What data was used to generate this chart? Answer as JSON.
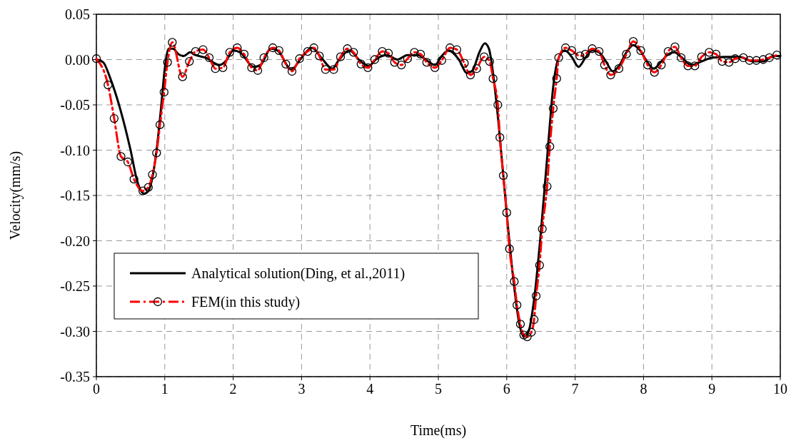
{
  "chart_data": {
    "type": "line",
    "xlabel": "Time(ms)",
    "ylabel": "Velocity(mm/s)",
    "xlim": [
      0,
      10
    ],
    "xticks": [
      0,
      1,
      2,
      3,
      4,
      5,
      6,
      7,
      8,
      9,
      10
    ],
    "ylim": [
      -0.35,
      0.05
    ],
    "yticks": [
      {
        "value": -0.35,
        "label": "-0.35"
      },
      {
        "value": -0.3,
        "label": "-0.30"
      },
      {
        "value": -0.25,
        "label": "-0.25"
      },
      {
        "value": -0.2,
        "label": "-0.20"
      },
      {
        "value": -0.15,
        "label": "-0.15"
      },
      {
        "value": -0.1,
        "label": "-0.10"
      },
      {
        "value": -0.05,
        "label": "-0.05"
      },
      {
        "value": 0,
        "label": "0.00"
      },
      {
        "value": 0.05,
        "label": "0.05"
      }
    ],
    "grid": true,
    "legend": "bottom left",
    "series": [
      {
        "name": "Analytical solution(Ding, et al.,2011)",
        "color": "#000000",
        "marker": "none",
        "line_style": "solid",
        "x": [
          0,
          0.1,
          0.2,
          0.35,
          0.5,
          0.6,
          0.7,
          0.76,
          0.82,
          0.88,
          0.95,
          1.0,
          1.06,
          1.12,
          1.2,
          1.28,
          1.37,
          1.45,
          1.6,
          1.8,
          1.9,
          2.0,
          2.1,
          2.3,
          2.4,
          2.55,
          2.65,
          2.85,
          3.0,
          3.15,
          3.3,
          3.45,
          3.55,
          3.7,
          3.85,
          3.98,
          4.1,
          4.25,
          4.4,
          4.55,
          4.7,
          4.85,
          4.95,
          5.05,
          5.15,
          5.3,
          5.42,
          5.5,
          5.6,
          5.68,
          5.74,
          5.8,
          5.88,
          6.0,
          6.1,
          6.18,
          6.25,
          6.32,
          6.4,
          6.5,
          6.6,
          6.68,
          6.75,
          6.85,
          6.95,
          7.05,
          7.15,
          7.25,
          7.35,
          7.45,
          7.55,
          7.65,
          7.75,
          7.85,
          7.95,
          8.05,
          8.15,
          8.25,
          8.35,
          8.45,
          8.55,
          8.7,
          8.85,
          9.0,
          9.2,
          9.4,
          9.6,
          9.75,
          9.9,
          10
        ],
        "values": [
          0,
          -0.003,
          -0.02,
          -0.055,
          -0.1,
          -0.135,
          -0.148,
          -0.145,
          -0.13,
          -0.1,
          -0.05,
          -0.01,
          0.012,
          0.012,
          0.006,
          0.004,
          0.008,
          0.005,
          0.002,
          -0.006,
          -0.001,
          0.01,
          0.008,
          -0.008,
          -0.006,
          0.012,
          0.01,
          -0.011,
          0.002,
          0.013,
          0.001,
          -0.01,
          0,
          0.01,
          -0.001,
          -0.007,
          0.001,
          0.005,
          0,
          0.005,
          0.005,
          -0.002,
          -0.006,
          0.004,
          0.01,
          0,
          -0.015,
          -0.012,
          0.008,
          0.018,
          0.012,
          -0.015,
          -0.07,
          -0.17,
          -0.245,
          -0.29,
          -0.306,
          -0.3,
          -0.265,
          -0.19,
          -0.1,
          -0.03,
          0,
          0.01,
          0.003,
          -0.008,
          0.002,
          0.01,
          0.008,
          -0.002,
          -0.013,
          -0.006,
          0.008,
          0.016,
          0.01,
          -0.002,
          -0.01,
          -0.003,
          0.005,
          0.008,
          0.003,
          -0.006,
          -0.002,
          0.002,
          0.003,
          0.003,
          -0.002,
          -0.002,
          0.004,
          0.004
        ]
      },
      {
        "name": "FEM(in this study)",
        "color": "#ff0000",
        "marker": "circle",
        "line_style": "dashed",
        "x": [
          0,
          0.17,
          0.26,
          0.36,
          0.46,
          0.55,
          0.68,
          0.76,
          0.82,
          0.88,
          0.93,
          0.99,
          1.04,
          1.11,
          1.26,
          1.36,
          1.45,
          1.56,
          1.65,
          1.74,
          1.85,
          1.95,
          2.06,
          2.16,
          2.27,
          2.36,
          2.45,
          2.58,
          2.67,
          2.77,
          2.86,
          2.97,
          3.09,
          3.18,
          3.26,
          3.35,
          3.47,
          3.57,
          3.67,
          3.76,
          3.87,
          3.97,
          4.07,
          4.18,
          4.27,
          4.36,
          4.46,
          4.55,
          4.65,
          4.74,
          4.83,
          4.95,
          5.05,
          5.17,
          5.27,
          5.38,
          5.47,
          5.56,
          5.67,
          5.75,
          5.8,
          5.87,
          5.9,
          5.95,
          6.0,
          6.04,
          6.11,
          6.15,
          6.2,
          6.25,
          6.3,
          6.36,
          6.4,
          6.43,
          6.48,
          6.52,
          6.59,
          6.63,
          6.68,
          6.73,
          6.76,
          6.86,
          6.95,
          7.07,
          7.15,
          7.25,
          7.35,
          7.43,
          7.52,
          7.64,
          7.75,
          7.85,
          7.96,
          8.06,
          8.16,
          8.26,
          8.36,
          8.46,
          8.55,
          8.65,
          8.75,
          8.85,
          8.96,
          9.06,
          9.15,
          9.25,
          9.34,
          9.46,
          9.55,
          9.65,
          9.75,
          9.84,
          9.95
        ],
        "values": [
          0.001,
          -0.028,
          -0.065,
          -0.107,
          -0.113,
          -0.132,
          -0.145,
          -0.141,
          -0.127,
          -0.103,
          -0.072,
          -0.036,
          -0.003,
          0.019,
          -0.019,
          -0.002,
          0.009,
          0.011,
          0.002,
          -0.01,
          -0.009,
          0.008,
          0.013,
          0.006,
          -0.009,
          -0.012,
          0.002,
          0.013,
          0.01,
          -0.005,
          -0.013,
          0.001,
          0.009,
          0.013,
          0.004,
          -0.011,
          -0.011,
          0.003,
          0.012,
          0.008,
          -0.005,
          -0.009,
          0,
          0.009,
          0.007,
          -0.003,
          -0.006,
          0.001,
          0.008,
          0.006,
          -0.003,
          -0.009,
          -0.001,
          0.013,
          0.011,
          -0.004,
          -0.017,
          -0.01,
          0.003,
          -0.002,
          -0.021,
          -0.05,
          -0.086,
          -0.128,
          -0.169,
          -0.209,
          -0.245,
          -0.271,
          -0.292,
          -0.304,
          -0.306,
          -0.301,
          -0.287,
          -0.261,
          -0.227,
          -0.187,
          -0.14,
          -0.096,
          -0.054,
          -0.021,
          0.002,
          0.013,
          0.01,
          0.004,
          0.006,
          0.012,
          0.009,
          -0.006,
          -0.017,
          -0.01,
          0.006,
          0.02,
          0.01,
          -0.006,
          -0.014,
          -0.006,
          0.009,
          0.014,
          0.002,
          -0.007,
          -0.007,
          0.003,
          0.008,
          0.006,
          -0.002,
          -0.003,
          0.001,
          0.002,
          -0.001,
          -0.001,
          0,
          0.002,
          0.005
        ]
      }
    ]
  }
}
